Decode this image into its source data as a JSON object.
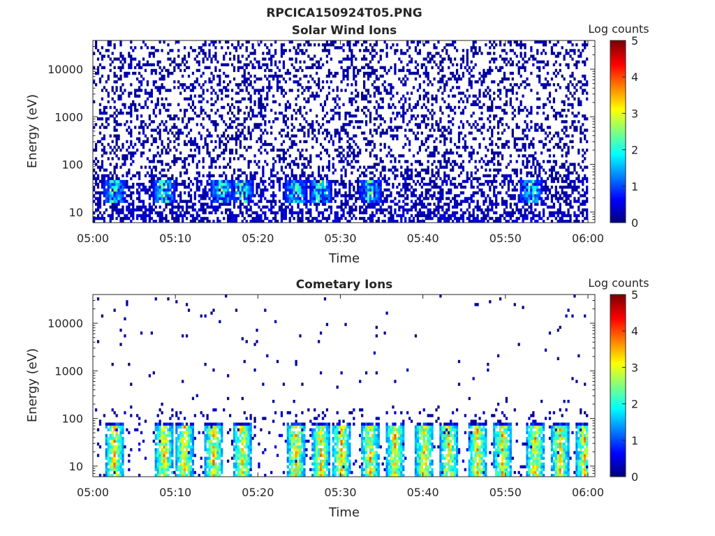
{
  "figure_title": "RPCICA150924T05.PNG",
  "colormap": "jet",
  "colors": {
    "axes": "#262626",
    "background": "#ffffff",
    "panel_bg": "#ffffff"
  },
  "chart_data": [
    {
      "type": "heatmap",
      "title": "Solar Wind Ions",
      "xlabel": "Time",
      "ylabel": "Energy (eV)",
      "yscale": "log",
      "ylim": [
        6,
        40000
      ],
      "xlim": [
        "05:00",
        "06:00"
      ],
      "x_tick_labels": [
        "05:00",
        "05:10",
        "05:20",
        "05:30",
        "05:40",
        "05:50",
        "06:00"
      ],
      "y_tick_labels": [
        "10",
        "100",
        "1000",
        "10000"
      ],
      "y_tick_values": [
        10,
        100,
        1000,
        10000
      ],
      "colorbar": {
        "label": "Log counts",
        "range": [
          0,
          5
        ],
        "tick_labels": [
          "0",
          "1",
          "2",
          "3",
          "4",
          "5"
        ]
      },
      "enhancement_times_min": [
        2.5,
        8.5,
        15.5,
        18,
        24.5,
        27.5,
        33.5,
        53
      ],
      "enhancement_energy_ev": [
        20,
        40
      ],
      "enhancement_peak_log_counts": 3,
      "background_level_log_counts": 0.2
    },
    {
      "type": "heatmap",
      "title": "Cometary Ions",
      "xlabel": "Time",
      "ylabel": "Energy (eV)",
      "yscale": "log",
      "ylim": [
        6,
        40000
      ],
      "xlim": [
        "05:00",
        "06:00"
      ],
      "x_tick_labels": [
        "05:00",
        "05:10",
        "05:20",
        "05:30",
        "05:40",
        "05:50",
        "06:00"
      ],
      "y_tick_labels": [
        "10",
        "100",
        "1000",
        "10000"
      ],
      "y_tick_values": [
        10,
        100,
        1000,
        10000
      ],
      "colorbar": {
        "label": "Log counts",
        "range": [
          0,
          5
        ],
        "tick_labels": [
          "0",
          "1",
          "2",
          "3",
          "4",
          "5"
        ]
      },
      "burst_times_min": [
        2.5,
        8.5,
        11,
        14.5,
        18,
        24.5,
        27.5,
        30,
        33.5,
        36.5,
        40,
        43,
        46.5,
        49.5,
        53.5,
        56.5,
        59.5
      ],
      "burst_energy_ev": [
        10,
        50
      ],
      "burst_peak_log_counts": 4,
      "background_level_log_counts": 0.1
    }
  ]
}
